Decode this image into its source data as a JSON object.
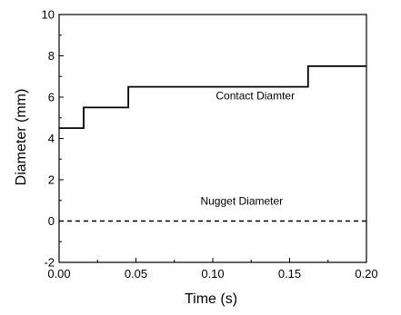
{
  "chart_data": {
    "type": "line",
    "xlabel": "Time (s)",
    "ylabel": "Diameter (mm)",
    "xlim": [
      0.0,
      0.2
    ],
    "ylim": [
      -2,
      10
    ],
    "x_ticks": [
      "0.00",
      "0.05",
      "0.10",
      "0.15",
      "0.20"
    ],
    "y_ticks": [
      "-2",
      "0",
      "2",
      "4",
      "6",
      "8",
      "10"
    ],
    "grid": false,
    "legend": "none",
    "series": [
      {
        "style": "solid",
        "color": "#000000",
        "x": [
          0.0,
          0.016,
          0.016,
          0.045,
          0.045,
          0.162,
          0.162,
          0.2
        ],
        "y": [
          4.5,
          4.5,
          5.5,
          5.5,
          6.5,
          6.5,
          7.5,
          7.5
        ]
      },
      {
        "style": "dashed",
        "color": "#000000",
        "x": [
          0.0,
          0.2
        ],
        "y": [
          0.0,
          0.0
        ]
      }
    ],
    "annotations": [
      {
        "text": "Contact Diamter",
        "x": 0.102,
        "y": 5.9
      },
      {
        "text": "Nugget Diameter",
        "x": 0.092,
        "y": 0.8
      }
    ]
  }
}
